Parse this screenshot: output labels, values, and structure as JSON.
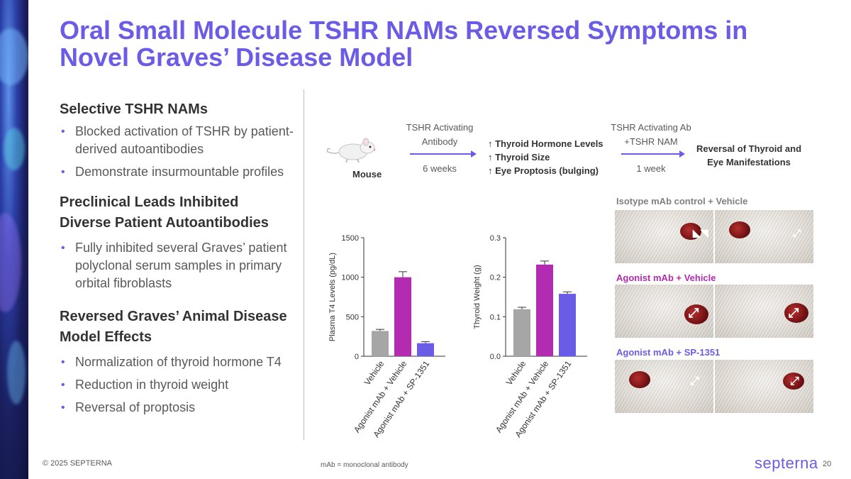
{
  "title_line1": "Oral Small Molecule TSHR NAMs Reversed Symptoms in",
  "title_line2": "Novel Graves’ Disease Model",
  "sections": [
    {
      "heading": [
        "Selective TSHR NAMs"
      ],
      "bullets": [
        "Blocked activation of TSHR by patient-derived autoantibodies",
        "Demonstrate insurmountable profiles"
      ]
    },
    {
      "heading": [
        "Preclinical Leads Inhibited",
        "Diverse Patient Autoantibodies"
      ],
      "bullets": [
        "Fully inhibited several Graves’ patient polyclonal serum samples in primary orbital fibroblasts"
      ]
    },
    {
      "heading": [
        "Reversed Graves’ Animal Disease",
        "Model Effects"
      ],
      "bullets": [
        "Normalization of thyroid hormone T4",
        "Reduction in thyroid weight",
        "Reversal of proptosis"
      ]
    }
  ],
  "flow": {
    "mouse_label": "Mouse",
    "step1_line1": "TSHR Activating",
    "step1_line2": "Antibody",
    "step1_duration": "6 weeks",
    "effects": [
      "↑ Thyroid Hormone Levels",
      "↑ Thyroid Size",
      "↑ Eye Proptosis (bulging)"
    ],
    "step2_line1": "TSHR Activating Ab",
    "step2_line2": "+TSHR NAM",
    "step2_duration": "1 week",
    "outcome_line1": "Reversal of Thyroid and",
    "outcome_line2": "Eye Manifestations"
  },
  "chart_data": [
    {
      "type": "bar",
      "categories": [
        "Vehicle",
        "Agonist mAb + Vehicle",
        "Agonist mAb + SP-1351"
      ],
      "values": [
        320,
        1000,
        165
      ],
      "errors": [
        20,
        70,
        20
      ],
      "colors": [
        "#a6a6a6",
        "#b22bb0",
        "#6b5ce7"
      ],
      "ylabel": "Plasma T4 Levels (pg/dL)",
      "ylim": [
        0,
        1500
      ],
      "yticks": [
        "0",
        "500",
        "1000",
        "1500"
      ],
      "ytick_values": [
        0,
        500,
        1000,
        1500
      ]
    },
    {
      "type": "bar",
      "categories": [
        "Vehicle",
        "Agonist mAb + Vehicle",
        "Agonist mAb + SP-1351"
      ],
      "values": [
        0.119,
        0.232,
        0.158
      ],
      "errors": [
        0.005,
        0.009,
        0.005
      ],
      "colors": [
        "#a6a6a6",
        "#b22bb0",
        "#6b5ce7"
      ],
      "ylabel": "Thyroid Weight (g)",
      "ylim": [
        0,
        0.3
      ],
      "yticks": [
        "0.0",
        "0.1",
        "0.2",
        "0.3"
      ],
      "ytick_values": [
        0,
        0.1,
        0.2,
        0.3
      ]
    }
  ],
  "photo_groups": [
    {
      "label": "Isotype mAb control + Vehicle",
      "color": "#808080"
    },
    {
      "label": "Agonist mAb + Vehicle",
      "color": "#b22bb0"
    },
    {
      "label": "Agonist mAb + SP-1351",
      "color": "#6b5ce7"
    }
  ],
  "footer": {
    "copyright": "© 2025 SEPTERNA",
    "note": "mAb = monoclonal antibody",
    "logo": "septerna",
    "page": "20"
  },
  "colors": {
    "accent": "#6b5ce7",
    "magenta": "#b22bb0",
    "gray": "#a6a6a6"
  }
}
